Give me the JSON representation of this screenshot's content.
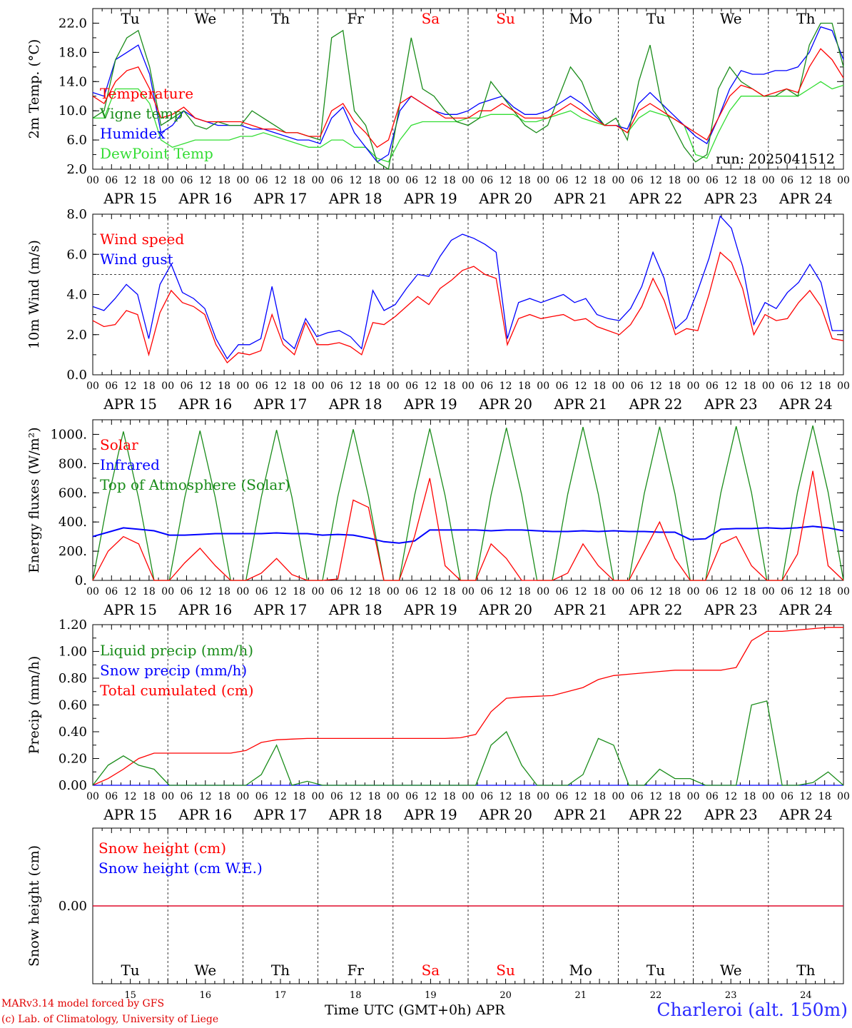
{
  "footer": {
    "credit_line1": "MARv3.14 model forced by GFS",
    "credit_line2": "(c) Lab. of Climatology, University of Liege",
    "x_title": "Time UTC (GMT+0h)",
    "x_month": "APR",
    "station": "Charleroi (alt. 150m)"
  },
  "colors": {
    "red": "#ff0000",
    "green": "#1a8c1a",
    "blue": "#0000ff",
    "lightgreen": "#33dd33",
    "weekend": "#ff0000"
  },
  "axis": {
    "hour_ticks": [
      "00",
      "06",
      "12",
      "18"
    ],
    "end_tick": "00",
    "dates": [
      "APR 15",
      "APR 16",
      "APR 17",
      "APR 18",
      "APR 19",
      "APR 20",
      "APR 21",
      "APR 22",
      "APR 23",
      "APR 24"
    ],
    "weekdays": [
      "Tu",
      "We",
      "Th",
      "Fr",
      "Sa",
      "Su",
      "Mo",
      "Tu",
      "We",
      "Th"
    ],
    "weekend_flags": [
      false,
      false,
      false,
      false,
      true,
      true,
      false,
      false,
      false,
      false
    ],
    "day_numbers": [
      "15",
      "16",
      "17",
      "18",
      "19",
      "20",
      "21",
      "22",
      "23",
      "24"
    ]
  },
  "chart_data": [
    {
      "type": "line",
      "ylabel": "2m Temp. (°C)",
      "ylim": [
        2,
        24
      ],
      "yticks": [
        "2.0",
        "6.0",
        "10.0",
        "14.0",
        "18.0",
        "22.0"
      ],
      "ytick_values": [
        2,
        6,
        10,
        14,
        18,
        22
      ],
      "annotation": "run: 2025041512",
      "x_start": "2025-04-15 00:00",
      "x_end": "2025-04-25 00:00",
      "x_step_hours": 6,
      "series": [
        {
          "name": "Temperature",
          "color": "red",
          "values": [
            12,
            11,
            14,
            15.5,
            16,
            13,
            9,
            9.5,
            10.5,
            9,
            8.5,
            8.5,
            8.5,
            8.5,
            8,
            7.5,
            7.5,
            7,
            7,
            6.5,
            6.5,
            10,
            11,
            8.5,
            7,
            5,
            6,
            11,
            12,
            11,
            10,
            9,
            9,
            9,
            10,
            10,
            11,
            10,
            9,
            9,
            9,
            10,
            11,
            10,
            9,
            8,
            8,
            7,
            10,
            11,
            10,
            9,
            8,
            7,
            6,
            9,
            12,
            13.5,
            13,
            12,
            12.5,
            13,
            12.5,
            16,
            18.5,
            17,
            14.5
          ]
        },
        {
          "name": "Vigne temp",
          "color": "green",
          "values": [
            9,
            10,
            17,
            20,
            21,
            16,
            8,
            9,
            10,
            8,
            7.5,
            8.5,
            8,
            8,
            10,
            9,
            8,
            7,
            7,
            6.5,
            6,
            20,
            21,
            10,
            8,
            3,
            2,
            11,
            20,
            13,
            12,
            10,
            8.5,
            8,
            9,
            14,
            12,
            10,
            8,
            7,
            8,
            12,
            16,
            14,
            10,
            8,
            9,
            6,
            14,
            19,
            11,
            8,
            5,
            3,
            4,
            13,
            16,
            14,
            13,
            12,
            12,
            13,
            12,
            19,
            22,
            22,
            16
          ]
        },
        {
          "name": "Humidex",
          "color": "blue",
          "values": [
            12.5,
            12,
            17,
            18,
            19,
            15,
            7,
            8,
            10,
            9,
            8.5,
            8,
            8,
            8,
            7.5,
            7.5,
            7,
            6.5,
            6,
            6,
            5.5,
            9,
            10.5,
            7,
            5,
            3,
            4,
            10,
            12,
            11,
            10,
            9.5,
            9.5,
            10,
            11,
            11.5,
            12,
            10.5,
            9.5,
            9.5,
            10,
            11,
            12,
            11,
            9.5,
            8,
            8,
            7.5,
            11,
            12.5,
            11,
            9.5,
            8,
            6.5,
            5.5,
            9,
            13,
            15.5,
            15,
            15,
            15.5,
            15.5,
            16,
            18,
            21.5,
            21,
            17
          ]
        },
        {
          "name": "DewPoint Temp",
          "color": "lightgreen",
          "values": [
            9,
            9,
            13,
            13,
            13,
            11,
            6,
            5,
            5.5,
            6,
            6,
            6,
            6,
            6.5,
            6.5,
            7,
            6.5,
            6,
            5.5,
            5,
            5,
            6,
            6,
            5,
            5,
            3.5,
            3,
            6,
            8,
            8.5,
            8.5,
            8.5,
            8.5,
            9,
            9,
            9.5,
            9.5,
            9.5,
            8.5,
            8.5,
            9,
            9.5,
            10,
            9,
            8.5,
            8,
            8,
            7,
            9,
            10,
            9.5,
            9,
            8,
            4,
            3.5,
            7,
            10,
            12,
            12,
            12,
            12,
            12,
            12,
            13,
            14,
            13,
            13.5
          ]
        }
      ]
    },
    {
      "type": "line",
      "ylabel": "10m Wind (m/s)",
      "ylim": [
        0,
        8
      ],
      "yticks": [
        "0.0",
        "2.0",
        "4.0",
        "6.0",
        "8.0"
      ],
      "ytick_values": [
        0,
        2,
        4,
        6,
        8
      ],
      "reference_line": 5,
      "x_start": "2025-04-15 00:00",
      "x_end": "2025-04-25 00:00",
      "x_step_hours": 6,
      "series": [
        {
          "name": "Wind speed",
          "color": "red",
          "values": [
            2.7,
            2.4,
            2.5,
            3.2,
            3,
            1,
            3.1,
            4.2,
            3.6,
            3.4,
            3,
            1.5,
            0.6,
            1.1,
            1,
            1.2,
            3,
            1.5,
            1,
            2.6,
            1.5,
            1.5,
            1.6,
            1.4,
            1,
            2.6,
            2.5,
            2.9,
            3.4,
            3.9,
            3.5,
            4.3,
            4.7,
            5.2,
            5.4,
            5,
            4.8,
            1.5,
            2.8,
            3,
            2.8,
            2.9,
            3,
            2.7,
            2.8,
            2.4,
            2.2,
            2,
            2.5,
            3.4,
            4.8,
            3.7,
            2,
            2.3,
            2.2,
            4,
            6.1,
            5.6,
            4.3,
            2,
            3,
            2.7,
            2.8,
            3.6,
            4.2,
            3.4,
            1.8,
            1.7
          ]
        },
        {
          "name": "Wind gust",
          "color": "blue",
          "values": [
            3.4,
            3.2,
            3.8,
            4.5,
            4,
            1.8,
            4.5,
            5.5,
            4.1,
            3.8,
            3.3,
            1.8,
            0.8,
            1.5,
            1.5,
            1.8,
            4.4,
            1.8,
            1.3,
            2.8,
            1.9,
            2.1,
            2.2,
            1.9,
            1.3,
            4.2,
            3.2,
            3.5,
            4.3,
            5,
            4.9,
            5.9,
            6.7,
            7,
            6.8,
            6.5,
            6.1,
            1.8,
            3.6,
            3.8,
            3.6,
            3.8,
            4,
            3.6,
            3.8,
            3,
            2.8,
            2.7,
            3.3,
            4.4,
            6.1,
            4.8,
            2.3,
            2.8,
            4.2,
            5.8,
            7.9,
            7.3,
            5.4,
            2.5,
            3.6,
            3.3,
            4.1,
            4.6,
            5.5,
            4.6,
            2.2,
            2.2
          ]
        }
      ]
    },
    {
      "type": "line",
      "ylabel": "Energy fluxes (W/m²)",
      "ylim": [
        0,
        1100
      ],
      "yticks": [
        "0.",
        "200.",
        "400.",
        "600.",
        "800.",
        "1000."
      ],
      "ytick_values": [
        0,
        200,
        400,
        600,
        800,
        1000
      ],
      "x_start": "2025-04-15 00:00",
      "x_end": "2025-04-25 00:00",
      "x_step_hours": 6,
      "series": [
        {
          "name": "Solar",
          "color": "red",
          "values": [
            0,
            200,
            300,
            250,
            0,
            0,
            120,
            220,
            100,
            0,
            0,
            50,
            150,
            40,
            0,
            0,
            10,
            550,
            500,
            0,
            0,
            300,
            700,
            100,
            0,
            0,
            250,
            150,
            0,
            0,
            0,
            50,
            250,
            100,
            0,
            0,
            200,
            400,
            150,
            0,
            0,
            250,
            300,
            100,
            0,
            0,
            180,
            750,
            100,
            0
          ]
        },
        {
          "name": "Infrared",
          "color": "blue",
          "values": [
            300,
            330,
            360,
            350,
            340,
            310,
            310,
            315,
            320,
            320,
            320,
            320,
            325,
            320,
            320,
            310,
            315,
            310,
            290,
            265,
            255,
            270,
            345,
            345,
            345,
            345,
            340,
            345,
            345,
            340,
            335,
            335,
            340,
            335,
            340,
            335,
            335,
            330,
            330,
            280,
            285,
            350,
            355,
            355,
            360,
            355,
            360,
            370,
            360,
            340
          ]
        },
        {
          "name": "Top of Atmosphere (Solar)",
          "color": "green",
          "values": [
            0,
            560,
            1020,
            560,
            0,
            0,
            565,
            1025,
            565,
            0,
            0,
            570,
            1030,
            570,
            0,
            0,
            575,
            1035,
            575,
            0,
            0,
            580,
            1040,
            580,
            0,
            0,
            585,
            1045,
            585,
            0,
            0,
            590,
            1050,
            590,
            0,
            0,
            595,
            1052,
            595,
            0,
            0,
            600,
            1055,
            600,
            0,
            0,
            605,
            1060,
            605,
            0
          ]
        }
      ]
    },
    {
      "type": "line",
      "ylabel": "Precip (mm/h)",
      "ylim": [
        0,
        1.2
      ],
      "yticks": [
        "0.00",
        "0.20",
        "0.40",
        "0.60",
        "0.80",
        "1.00",
        "1.20"
      ],
      "ytick_values": [
        0,
        0.2,
        0.4,
        0.6,
        0.8,
        1.0,
        1.2
      ],
      "x_start": "2025-04-15 00:00",
      "x_end": "2025-04-25 00:00",
      "x_step_hours": 6,
      "series": [
        {
          "name": "Liquid precip (mm/h)",
          "color": "green",
          "values": [
            0,
            0.15,
            0.22,
            0.15,
            0.12,
            0,
            0,
            0,
            0,
            0,
            0,
            0.08,
            0.3,
            0,
            0.03,
            0,
            0,
            0,
            0,
            0,
            0,
            0,
            0,
            0,
            0,
            0,
            0.3,
            0.4,
            0.15,
            0,
            0,
            0,
            0.08,
            0.35,
            0.3,
            0,
            0,
            0.12,
            0.05,
            0.05,
            0,
            0,
            0,
            0.6,
            0.63,
            0,
            0,
            0.02,
            0.1,
            0
          ]
        },
        {
          "name": "Snow precip (mm/h)",
          "color": "blue",
          "values": [
            0,
            0,
            0,
            0,
            0,
            0,
            0,
            0,
            0,
            0,
            0,
            0,
            0,
            0,
            0,
            0,
            0,
            0,
            0,
            0,
            0,
            0,
            0,
            0,
            0,
            0,
            0,
            0,
            0,
            0,
            0,
            0,
            0,
            0,
            0,
            0,
            0,
            0,
            0,
            0,
            0,
            0,
            0,
            0,
            0,
            0,
            0,
            0,
            0,
            0
          ]
        },
        {
          "name": "Total cumulated (cm)",
          "color": "red",
          "values": [
            0,
            0.05,
            0.12,
            0.2,
            0.24,
            0.24,
            0.24,
            0.24,
            0.24,
            0.24,
            0.26,
            0.32,
            0.34,
            0.345,
            0.35,
            0.35,
            0.35,
            0.35,
            0.35,
            0.35,
            0.35,
            0.35,
            0.35,
            0.35,
            0.355,
            0.38,
            0.55,
            0.65,
            0.66,
            0.665,
            0.67,
            0.7,
            0.73,
            0.79,
            0.82,
            0.83,
            0.84,
            0.85,
            0.86,
            0.86,
            0.86,
            0.86,
            0.88,
            1.08,
            1.15,
            1.15,
            1.16,
            1.17,
            1.18,
            1.18
          ]
        }
      ]
    },
    {
      "type": "line",
      "ylabel": "Snow height (cm)",
      "ylim": [
        -1,
        1
      ],
      "yticks": [
        "0.00"
      ],
      "ytick_values": [
        0
      ],
      "x_start": "2025-04-15 00:00",
      "x_end": "2025-04-25 00:00",
      "x_step_hours": 6,
      "series": [
        {
          "name": "Snow height (cm)",
          "color": "red",
          "values": [
            0,
            0
          ]
        },
        {
          "name": "Snow height (cm W.E.)",
          "color": "blue",
          "values": [
            0,
            0
          ]
        }
      ]
    }
  ]
}
